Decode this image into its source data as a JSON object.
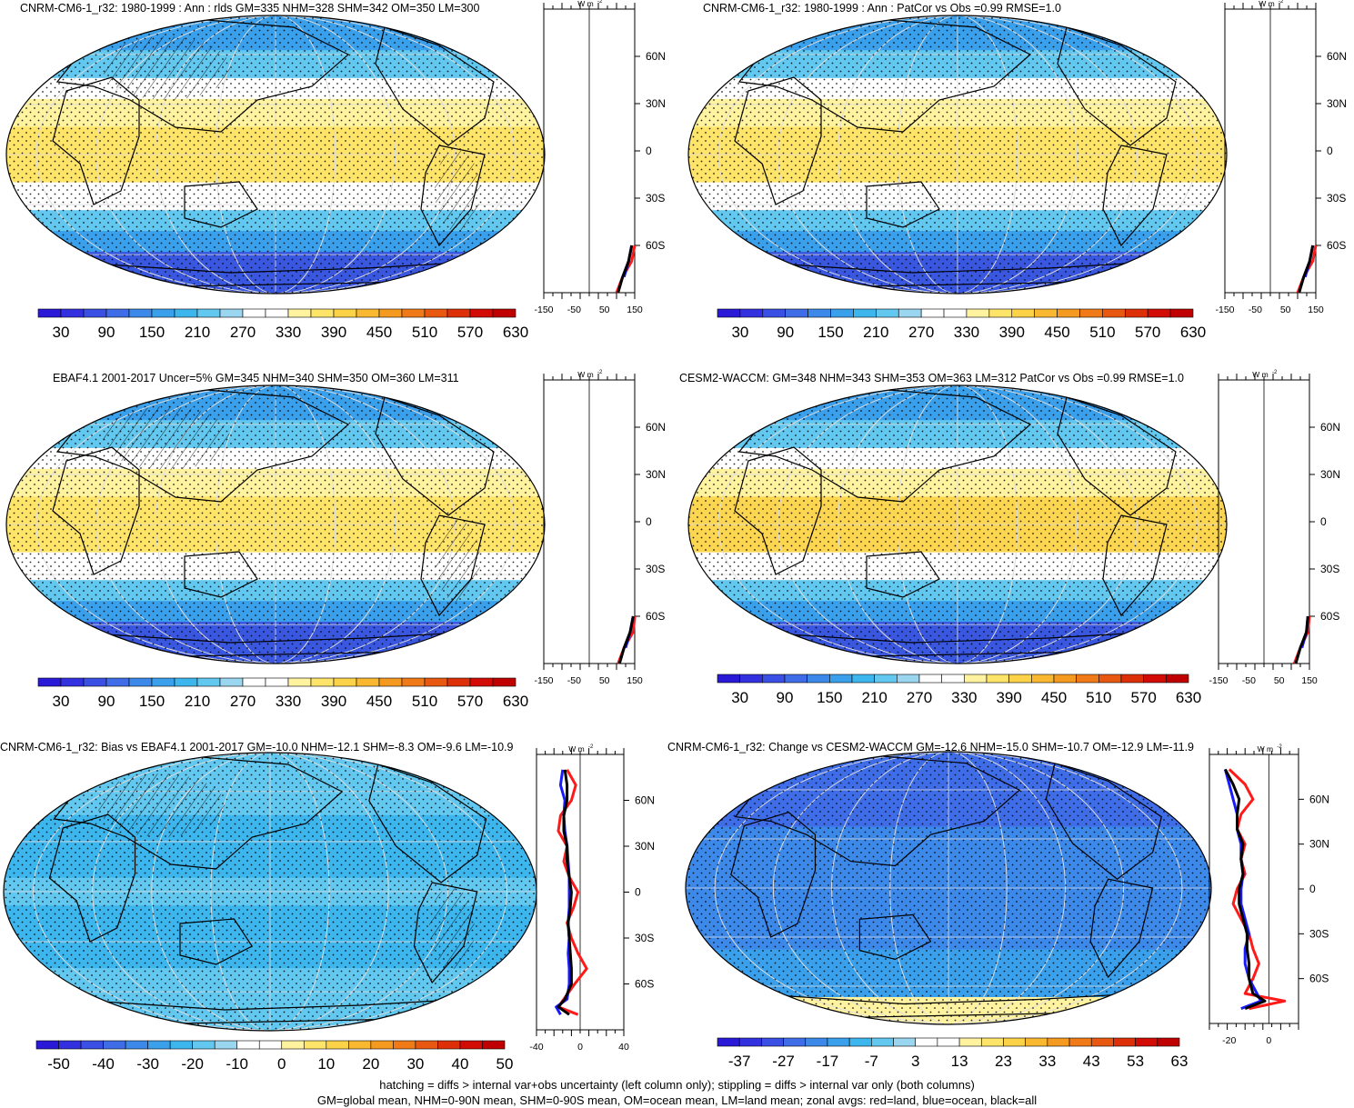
{
  "colors": {
    "palette_abs": [
      "#2a1ad8",
      "#3330e0",
      "#3a4fe4",
      "#3f6de8",
      "#3d89ea",
      "#3aa0ec",
      "#3db6ee",
      "#62c8f0",
      "#9ad6f0",
      "#ffffff",
      "#ffffff",
      "#fff3a0",
      "#ffe46a",
      "#fcd248",
      "#f9b830",
      "#f59a20",
      "#f07a18",
      "#e85810",
      "#de3008",
      "#d20c04",
      "#c00000"
    ],
    "palette_diff": [
      "#2a1ad8",
      "#3330e0",
      "#3a4fe4",
      "#3f6de8",
      "#3d89ea",
      "#3aa0ec",
      "#3db6ee",
      "#62c8f0",
      "#9ad6f0",
      "#ffffff",
      "#ffffff",
      "#fff3a0",
      "#ffe46a",
      "#fcd248",
      "#f9b830",
      "#f59a20",
      "#f07a18",
      "#e85810",
      "#de3008",
      "#d20c04",
      "#c00000"
    ],
    "land_line": "#ff1a1a",
    "ocean_line": "#1a1aff",
    "all_line": "#000000"
  },
  "panels": [
    {
      "title": "CNRM-CM6-1_r32: 1980-1999 : Ann : rlds GM=335 NHM=328 SHM=342 OM=350 LM=300",
      "colorbar_labels": [
        "30",
        "90",
        "150",
        "210",
        "270",
        "330",
        "390",
        "450",
        "510",
        "570",
        "630"
      ],
      "zonal_unit": "W m",
      "zonal_unit_exp": "-2",
      "zonal_x_labels": [
        "-150",
        "-50",
        "50",
        "150"
      ],
      "lat_labels": [
        "60N",
        "30N",
        "0",
        "30S",
        "60S"
      ]
    },
    {
      "title": "CNRM-CM6-1_r32: 1980-1999 : Ann : PatCor vs Obs =0.99 RMSE=1.0",
      "colorbar_labels": [
        "30",
        "90",
        "150",
        "210",
        "270",
        "330",
        "390",
        "450",
        "510",
        "570",
        "630"
      ],
      "zonal_unit": "W m",
      "zonal_unit_exp": "-2",
      "zonal_x_labels": [
        "-150",
        "-50",
        "50",
        "150"
      ],
      "lat_labels": [
        "60N",
        "30N",
        "0",
        "30S",
        "60S"
      ]
    },
    {
      "title": "EBAF4.1 2001-2017 Uncer=5% GM=345 NHM=340 SHM=350 OM=360 LM=311",
      "colorbar_labels": [
        "30",
        "90",
        "150",
        "210",
        "270",
        "330",
        "390",
        "450",
        "510",
        "570",
        "630"
      ],
      "zonal_unit": "W m",
      "zonal_unit_exp": "-2",
      "zonal_x_labels": [
        "-150",
        "-50",
        "50",
        "150"
      ],
      "lat_labels": [
        "60N",
        "30N",
        "0",
        "30S",
        "60S"
      ]
    },
    {
      "title": "CESM2-WACCM: GM=348 NHM=343 SHM=353 OM=363 LM=312 PatCor vs Obs =0.99 RMSE=1.0",
      "colorbar_labels": [
        "30",
        "90",
        "150",
        "210",
        "270",
        "330",
        "390",
        "450",
        "510",
        "570",
        "630"
      ],
      "zonal_unit": "W m",
      "zonal_unit_exp": "-2",
      "zonal_x_labels": [
        "-150",
        "-50",
        "50",
        "150"
      ],
      "lat_labels": [
        "60N",
        "30N",
        "0",
        "30S",
        "60S"
      ]
    },
    {
      "title": "CNRM-CM6-1_r32: Bias vs EBAF4.1 2001-2017 GM=-10.0 NHM=-12.1 SHM=-8.3 OM=-9.6 LM=-10.9",
      "colorbar_labels": [
        "-50",
        "-40",
        "-30",
        "-20",
        "-10",
        "0",
        "10",
        "20",
        "30",
        "40",
        "50"
      ],
      "zonal_unit": "W m",
      "zonal_unit_exp": "-2",
      "zonal_x_labels": [
        "-40",
        "0",
        "40"
      ],
      "lat_labels": [
        "60N",
        "30N",
        "0",
        "30S",
        "60S"
      ]
    },
    {
      "title": "CNRM-CM6-1_r32: Change vs CESM2-WACCM GM=-12.6 NHM=-15.0 SHM=-10.7 OM=-12.9 LM=-11.9",
      "colorbar_labels": [
        "-37",
        "-27",
        "-17",
        "-7",
        "3",
        "13",
        "23",
        "33",
        "43",
        "53",
        "63"
      ],
      "zonal_unit": "W m",
      "zonal_unit_exp": "-2",
      "zonal_x_labels": [
        "-20",
        "0"
      ],
      "lat_labels": [
        "60N",
        "30N",
        "0",
        "30S",
        "60S"
      ]
    }
  ],
  "footer": {
    "line1": "hatching = diffs > internal var+obs uncertainty (left column only); stippling = diffs > internal var only (both columns)",
    "line2": "GM=global mean, NHM=0-90N mean, SHM=0-90S mean, OM=ocean mean, LM=land mean; zonal avgs: red=land, blue=ocean, black=all"
  },
  "chart_data": [
    {
      "type": "heatmap",
      "title": "CNRM-CM6-1_r32: 1980-1999 : Ann : rlds GM=335 NHM=328 SHM=342 OM=350 LM=300",
      "colorbar": [
        30,
        90,
        150,
        210,
        270,
        330,
        390,
        450,
        510,
        570,
        630
      ],
      "zonal_xlim": [
        -150,
        150
      ],
      "zonal_lat": [
        -90,
        -80,
        -70,
        -60
      ],
      "zonal_land": [
        90,
        110,
        140,
        150
      ],
      "zonal_ocean": [
        null,
        115,
        130,
        140
      ],
      "zonal_all": [
        95,
        110,
        130,
        140
      ]
    },
    {
      "type": "heatmap",
      "title": "CNRM-CM6-1_r32: 1980-1999 : Ann : PatCor vs Obs =0.99 RMSE=1.0",
      "colorbar": [
        30,
        90,
        150,
        210,
        270,
        330,
        390,
        450,
        510,
        570,
        630
      ],
      "zonal_xlim": [
        -150,
        150
      ],
      "zonal_lat": [
        -90,
        -80,
        -70,
        -60
      ],
      "zonal_land": [
        90,
        110,
        140,
        150
      ],
      "zonal_ocean": [
        null,
        115,
        130,
        140
      ],
      "zonal_all": [
        95,
        110,
        130,
        140
      ]
    },
    {
      "type": "heatmap",
      "title": "EBAF4.1 2001-2017 Uncer=5% GM=345 NHM=340 SHM=350 OM=360 LM=311",
      "colorbar": [
        30,
        90,
        150,
        210,
        270,
        330,
        390,
        450,
        510,
        570,
        630
      ],
      "zonal_xlim": [
        -150,
        150
      ],
      "zonal_lat": [
        -90,
        -80,
        -70,
        -60
      ],
      "zonal_land": [
        95,
        115,
        145,
        150
      ],
      "zonal_ocean": [
        null,
        120,
        135,
        145
      ],
      "zonal_all": [
        100,
        115,
        135,
        145
      ]
    },
    {
      "type": "heatmap",
      "title": "CESM2-WACCM: GM=348 NHM=343 SHM=353 OM=363 LM=312 PatCor vs Obs =0.99 RMSE=1.0",
      "colorbar": [
        30,
        90,
        150,
        210,
        270,
        330,
        390,
        450,
        510,
        570,
        630
      ],
      "zonal_xlim": [
        -150,
        150
      ],
      "zonal_lat": [
        -90,
        -80,
        -70,
        -60
      ],
      "zonal_land": [
        100,
        120,
        145,
        150
      ],
      "zonal_ocean": [
        null,
        125,
        140,
        145
      ],
      "zonal_all": [
        105,
        120,
        140,
        145
      ]
    },
    {
      "type": "heatmap",
      "title": "CNRM-CM6-1_r32: Bias vs EBAF4.1 2001-2017 GM=-10.0 NHM=-12.1 SHM=-8.3 OM=-9.6 LM=-10.9",
      "colorbar": [
        -50,
        -40,
        -30,
        -20,
        -10,
        0,
        10,
        20,
        30,
        40,
        50
      ],
      "zonal_xlim": [
        -40,
        40
      ],
      "zonal_lat": [
        -80,
        -75,
        -70,
        -60,
        -50,
        -40,
        -30,
        -20,
        -10,
        0,
        10,
        20,
        30,
        40,
        50,
        60,
        70,
        80
      ],
      "zonal_land": [
        -2,
        -20,
        -15,
        -5,
        6,
        -2,
        -8,
        -12,
        -6,
        -2,
        -10,
        -15,
        -12,
        -20,
        -18,
        -8,
        -4,
        -12
      ],
      "zonal_ocean": [
        -18,
        -22,
        -12,
        -10,
        -10,
        -11,
        -10,
        -11,
        -10,
        -10,
        -10,
        -11,
        -12,
        -14,
        -15,
        -14,
        -18,
        -16
      ],
      "zonal_all": [
        -10,
        -20,
        -14,
        -8,
        -8,
        -9,
        -10,
        -11,
        -9,
        -8,
        -10,
        -12,
        -12,
        -15,
        -15,
        -12,
        -12,
        -14
      ]
    },
    {
      "type": "heatmap",
      "title": "CNRM-CM6-1_r32: Change vs CESM2-WACCM GM=-12.6 NHM=-15.0 SHM=-10.7 OM=-12.9 LM=-11.9",
      "colorbar": [
        -37,
        -27,
        -17,
        -7,
        3,
        13,
        23,
        33,
        43,
        53,
        63
      ],
      "zonal_xlim": [
        -30,
        15
      ],
      "zonal_lat": [
        -80,
        -75,
        -70,
        -60,
        -50,
        -40,
        -30,
        -20,
        -10,
        0,
        10,
        20,
        30,
        40,
        50,
        60,
        70,
        80
      ],
      "zonal_land": [
        -10,
        8,
        -12,
        -8,
        -5,
        -8,
        -10,
        -14,
        -18,
        -16,
        -12,
        -14,
        -12,
        -16,
        -14,
        -8,
        -12,
        -20
      ],
      "zonal_ocean": [
        -14,
        -4,
        -6,
        -10,
        -12,
        -12,
        -10,
        -12,
        -14,
        -14,
        -13,
        -14,
        -14,
        -16,
        -16,
        -18,
        -20,
        -22
      ],
      "zonal_all": [
        -12,
        -2,
        -8,
        -10,
        -10,
        -11,
        -11,
        -13,
        -15,
        -15,
        -13,
        -14,
        -13,
        -16,
        -16,
        -15,
        -18,
        -22
      ]
    }
  ]
}
